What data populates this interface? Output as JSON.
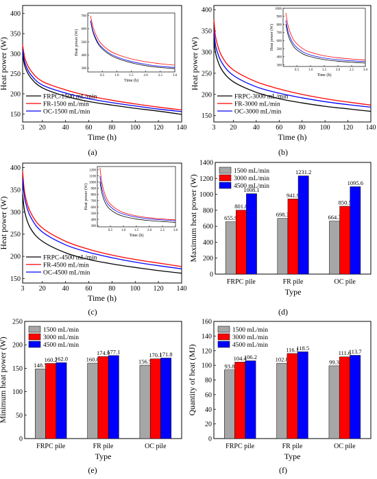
{
  "chart_data": [
    {
      "type": "line",
      "panel_label": "(a)",
      "xlabel": "Time (h)",
      "ylabel": "Heat power (W)",
      "xlim": [
        3,
        140
      ],
      "ylim": [
        130,
        420
      ],
      "xticks": [
        3,
        20,
        40,
        60,
        80,
        100,
        120,
        140
      ],
      "yticks": [
        150,
        200,
        250,
        300,
        350,
        400
      ],
      "legend_position": "bottom-left",
      "series": [
        {
          "name": "FRPC-1500 mL/min",
          "color": "#000000",
          "x": [
            3,
            5,
            10,
            20,
            40,
            60,
            80,
            100,
            120,
            140
          ],
          "y": [
            300,
            268,
            240,
            215,
            194,
            181,
            172,
            164,
            157,
            149
          ]
        },
        {
          "name": "FR-1500 mL/min",
          "color": "#ff0000",
          "x": [
            3,
            5,
            10,
            20,
            40,
            60,
            80,
            100,
            120,
            140
          ],
          "y": [
            322,
            288,
            258,
            231,
            210,
            195,
            184,
            175,
            167,
            160
          ]
        },
        {
          "name": "OC-1500 mL/min",
          "color": "#0000ff",
          "x": [
            3,
            5,
            10,
            20,
            40,
            60,
            80,
            100,
            120,
            140
          ],
          "y": [
            310,
            277,
            248,
            222,
            202,
            188,
            178,
            170,
            162,
            156
          ]
        }
      ],
      "inset": {
        "xlabel": "Time (h)",
        "ylabel": "Heat power (W)",
        "xlim": [
          0,
          3.0
        ],
        "ylim": [
          270,
          720
        ],
        "xticks": [
          0.5,
          1.0,
          1.5,
          2.0,
          2.5,
          3.0
        ],
        "xtick_labels": [
          "0.5",
          "1.0",
          "1.5",
          "2.0",
          "2.5",
          "3.0"
        ],
        "yticks": [
          300,
          400,
          500,
          600,
          700
        ],
        "series": [
          {
            "color": "#000000",
            "x": [
              0.1,
              0.2,
              0.4,
              0.7,
              1.0,
              1.5,
              2.0,
              2.5,
              3.0
            ],
            "y": [
              655,
              560,
              470,
              410,
              375,
              340,
              318,
              304,
              295
            ]
          },
          {
            "color": "#ff0000",
            "x": [
              0.1,
              0.2,
              0.4,
              0.7,
              1.0,
              1.5,
              2.0,
              2.5,
              3.0
            ],
            "y": [
              698,
              600,
              505,
              440,
              405,
              370,
              348,
              333,
              322
            ]
          },
          {
            "color": "#0000ff",
            "x": [
              0.1,
              0.2,
              0.4,
              0.7,
              1.0,
              1.5,
              2.0,
              2.5,
              3.0
            ],
            "y": [
              664,
              570,
              480,
              420,
              385,
              350,
              328,
              313,
              305
            ]
          }
        ]
      }
    },
    {
      "type": "line",
      "panel_label": "(b)",
      "xlabel": "Time (h)",
      "ylabel": "Heat power (W)",
      "xlim": [
        3,
        140
      ],
      "ylim": [
        135,
        410
      ],
      "xticks": [
        3,
        20,
        40,
        60,
        80,
        100,
        120,
        140
      ],
      "yticks": [
        150,
        200,
        250,
        300,
        350,
        400
      ],
      "legend_position": "bottom-left",
      "series": [
        {
          "name": "FRPC-3000 mL/min",
          "color": "#000000",
          "x": [
            3,
            5,
            10,
            20,
            40,
            60,
            80,
            100,
            120,
            140
          ],
          "y": [
            330,
            292,
            258,
            230,
            205,
            190,
            180,
            172,
            166,
            160
          ]
        },
        {
          "name": "FR-3000 mL/min",
          "color": "#ff0000",
          "x": [
            3,
            5,
            10,
            20,
            40,
            60,
            80,
            100,
            120,
            140
          ],
          "y": [
            375,
            330,
            290,
            258,
            230,
            213,
            200,
            190,
            182,
            175
          ]
        },
        {
          "name": "OC-3000 mL/min",
          "color": "#0000ff",
          "x": [
            3,
            5,
            10,
            20,
            40,
            60,
            80,
            100,
            120,
            140
          ],
          "y": [
            350,
            310,
            275,
            245,
            218,
            203,
            192,
            183,
            176,
            170
          ]
        }
      ],
      "inset": {
        "xlabel": "Time (h)",
        "ylabel": "Heat power (W)",
        "xlim": [
          0,
          3.0
        ],
        "ylim": [
          280,
          1000
        ],
        "xticks": [
          0.5,
          1.0,
          1.5,
          2.0,
          2.5,
          3.0
        ],
        "xtick_labels": [
          "0.5",
          "1.0",
          "1.5",
          "2.0",
          "2.5",
          "3.0"
        ],
        "yticks": [
          300,
          400,
          500,
          600,
          700,
          800,
          900,
          1000
        ],
        "series": [
          {
            "color": "#000000",
            "x": [
              0.1,
              0.2,
              0.4,
              0.7,
              1.0,
              1.5,
              2.0,
              2.5,
              3.0
            ],
            "y": [
              802,
              650,
              520,
              440,
              400,
              365,
              345,
              332,
              322
            ]
          },
          {
            "color": "#ff0000",
            "x": [
              0.1,
              0.2,
              0.4,
              0.7,
              1.0,
              1.5,
              2.0,
              2.5,
              3.0
            ],
            "y": [
              942,
              760,
              600,
              505,
              455,
              412,
              388,
              372,
              360
            ]
          },
          {
            "color": "#0000ff",
            "x": [
              0.1,
              0.2,
              0.4,
              0.7,
              1.0,
              1.5,
              2.0,
              2.5,
              3.0
            ],
            "y": [
              851,
              690,
              550,
              465,
              422,
              385,
              364,
              350,
              340
            ]
          }
        ]
      }
    },
    {
      "type": "line",
      "panel_label": "(c)",
      "xlabel": "Time (h)",
      "ylabel": "Heat power (W)",
      "xlim": [
        3,
        140
      ],
      "ylim": [
        140,
        410
      ],
      "xticks": [
        3,
        20,
        40,
        60,
        80,
        100,
        120,
        140
      ],
      "yticks": [
        150,
        200,
        250,
        300,
        350,
        400
      ],
      "legend_position": "bottom-left",
      "series": [
        {
          "name": "FRPC-4500 mL/min",
          "color": "#000000",
          "x": [
            3,
            5,
            10,
            20,
            40,
            60,
            80,
            100,
            120,
            140
          ],
          "y": [
            340,
            298,
            262,
            234,
            208,
            193,
            183,
            175,
            168,
            162
          ]
        },
        {
          "name": "FR-4500 mL/min",
          "color": "#ff0000",
          "x": [
            3,
            5,
            10,
            20,
            40,
            60,
            80,
            100,
            120,
            140
          ],
          "y": [
            392,
            340,
            298,
            264,
            234,
            216,
            203,
            193,
            185,
            177
          ]
        },
        {
          "name": "OC-4500 mL/min",
          "color": "#0000ff",
          "x": [
            3,
            5,
            10,
            20,
            40,
            60,
            80,
            100,
            120,
            140
          ],
          "y": [
            375,
            328,
            288,
            255,
            226,
            209,
            197,
            187,
            179,
            172
          ]
        }
      ],
      "inset": {
        "xlabel": "Time (h)",
        "ylabel": "Heat power (W)",
        "xlim": [
          0,
          3.0
        ],
        "ylim": [
          280,
          1250
        ],
        "xticks": [
          0.5,
          1.0,
          1.5,
          2.0,
          2.5,
          3.0
        ],
        "xtick_labels": [
          "0.5",
          "1.0",
          "1.5",
          "2.0",
          "2.5",
          "3.0"
        ],
        "yticks": [
          300,
          400,
          500,
          600,
          700,
          800,
          900,
          1000,
          1100,
          1200
        ],
        "series": [
          {
            "color": "#000000",
            "x": [
              0.1,
              0.2,
              0.4,
              0.7,
              1.0,
              1.5,
              2.0,
              2.5,
              3.0
            ],
            "y": [
              1008,
              780,
              600,
              500,
              450,
              405,
              380,
              365,
              352
            ]
          },
          {
            "color": "#ff0000",
            "x": [
              0.1,
              0.2,
              0.4,
              0.7,
              1.0,
              1.5,
              2.0,
              2.5,
              3.0
            ],
            "y": [
              1231,
              940,
              700,
              575,
              510,
              455,
              425,
              405,
              392
            ]
          },
          {
            "color": "#0000ff",
            "x": [
              0.1,
              0.2,
              0.4,
              0.7,
              1.0,
              1.5,
              2.0,
              2.5,
              3.0
            ],
            "y": [
              1096,
              850,
              650,
              540,
              485,
              435,
              408,
              390,
              378
            ]
          }
        ]
      }
    },
    {
      "type": "bar",
      "panel_label": "(d)",
      "xlabel": "Type",
      "ylabel": "Maximum heat power (W)",
      "ylim": [
        0,
        1400
      ],
      "yticks": [
        0,
        200,
        400,
        600,
        800,
        1000,
        1200,
        1400
      ],
      "categories": [
        "FRPC pile",
        "FR pile",
        "OC pile"
      ],
      "legend_position": "top-left",
      "series": [
        {
          "name": "1500 mL/min",
          "color": "#a6a6a6",
          "values": [
            655.9,
            698.3,
            664.3
          ],
          "labels": [
            "655.9",
            "698.3",
            "664.3"
          ]
        },
        {
          "name": "3000 mL/min",
          "color": "#ff0000",
          "values": [
            801.8,
            941.9,
            850.5
          ],
          "labels": [
            "801.8",
            "941.9",
            "850.5"
          ]
        },
        {
          "name": "4500 mL/min",
          "color": "#0000ff",
          "values": [
            1008.1,
            1231.2,
            1095.6
          ],
          "labels": [
            "1008.1",
            "1231.2",
            "1095.6"
          ]
        }
      ]
    },
    {
      "type": "bar",
      "panel_label": "(e)",
      "xlabel": "Type",
      "ylabel": "Minimum heat power (W)",
      "ylim": [
        0,
        250
      ],
      "yticks": [
        0,
        50,
        100,
        150,
        200,
        250
      ],
      "categories": [
        "FRPC pile",
        "FR pile",
        "OC pile"
      ],
      "legend_position": "top-left",
      "series": [
        {
          "name": "1500 mL/min",
          "color": "#a6a6a6",
          "values": [
            148.5,
            160.8,
            156.5
          ],
          "labels": [
            "148.5",
            "160.8",
            "156.5"
          ]
        },
        {
          "name": "3000 mL/min",
          "color": "#ff0000",
          "values": [
            160.2,
            174.9,
            170.1
          ],
          "labels": [
            "160.2",
            "174.9",
            "170.1"
          ]
        },
        {
          "name": "4500 mL/min",
          "color": "#0000ff",
          "values": [
            162.0,
            177.1,
            171.8
          ],
          "labels": [
            "162.0",
            "177.1",
            "171.8"
          ]
        }
      ]
    },
    {
      "type": "bar",
      "panel_label": "(f)",
      "xlabel": "Type",
      "ylabel": "Quantity of heat (MJ)",
      "ylim": [
        0,
        160
      ],
      "yticks": [
        0,
        20,
        40,
        60,
        80,
        100,
        120,
        140,
        160
      ],
      "categories": [
        "FRPC pile",
        "FR pile",
        "OC pile"
      ],
      "legend_position": "top-left",
      "series": [
        {
          "name": "1500 mL/min",
          "color": "#a6a6a6",
          "values": [
            93.8,
            102.8,
            99.3
          ],
          "labels": [
            "93.8",
            "102.8",
            "99.3"
          ]
        },
        {
          "name": "3000 mL/min",
          "color": "#ff0000",
          "values": [
            104.4,
            116.1,
            111.6
          ],
          "labels": [
            "104.4",
            "116.1",
            "111.6"
          ]
        },
        {
          "name": "4500 mL/min",
          "color": "#0000ff",
          "values": [
            106.2,
            118.5,
            113.7
          ],
          "labels": [
            "106.2",
            "118.5",
            "113.7"
          ]
        }
      ]
    }
  ]
}
